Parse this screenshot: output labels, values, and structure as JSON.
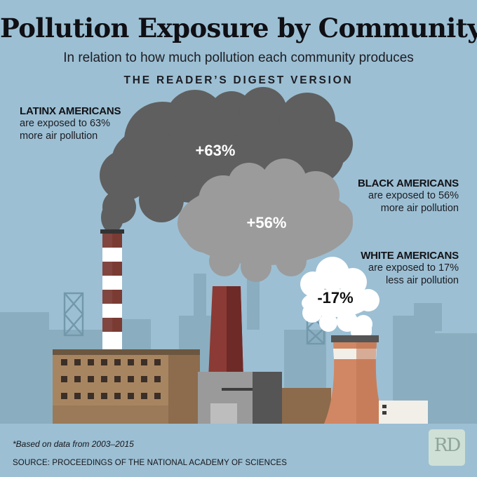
{
  "title": "Pollution Exposure by Community",
  "subtitle": "In relation to how much pollution each community produces",
  "brand_line": "THE READER’S DIGEST VERSION",
  "groups": [
    {
      "heading": "LATINX AMERICANS",
      "text_line1": "are exposed to 63%",
      "text_line2": "more air pollution",
      "cloud_label": "+63%",
      "exposure_pct": 63
    },
    {
      "heading": "BLACK AMERICANS",
      "text_line1": "are exposed to 56%",
      "text_line2": "more air pollution",
      "cloud_label": "+56%",
      "exposure_pct": 56
    },
    {
      "heading": "WHITE AMERICANS",
      "text_line1": "are exposed to 17%",
      "text_line2": "less air pollution",
      "cloud_label": "-17%",
      "exposure_pct": -17
    }
  ],
  "footnote": "*Based on data from 2003–2015",
  "source": "SOURCE: PROCEEDINGS OF THE NATIONAL ACADEMY OF SCIENCES",
  "logo": "RD",
  "icons": [
    "factory-illustration",
    "smoke-cloud",
    "cooling-tower",
    "smokestack"
  ],
  "colors": {
    "sky": "#9cbfd3",
    "dark_smoke": "#5f5f5f",
    "medium_smoke": "#9b9b9b",
    "white_smoke": "#ffffff",
    "stack_red": "#8c3a35",
    "cooling_tower": "#d18763"
  }
}
